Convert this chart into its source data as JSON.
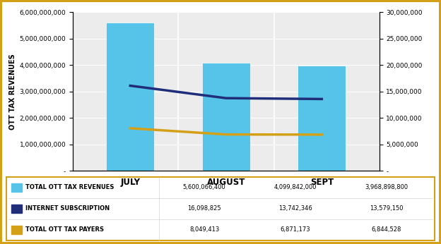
{
  "months": [
    "JULY",
    "AUGUST",
    "SEPT"
  ],
  "bar_values": [
    5600066400,
    4099842000,
    3968898800
  ],
  "internet_subscription": [
    16098825,
    13742346,
    13579150
  ],
  "ott_tax_payers": [
    8049413,
    6871173,
    6844528
  ],
  "bar_color": "#56C4E8",
  "line1_color": "#1F2D7B",
  "line2_color": "#D4A017",
  "ylabel_left": "OTT TAX REVENUES",
  "ylim_left": [
    0,
    6000000000
  ],
  "ylim_right": [
    0,
    30000000
  ],
  "yticks_left": [
    0,
    1000000000,
    2000000000,
    3000000000,
    4000000000,
    5000000000,
    6000000000
  ],
  "yticks_right": [
    0,
    5000000,
    10000000,
    15000000,
    20000000,
    25000000,
    30000000
  ],
  "legend_labels": [
    "TOTAL OTT TAX REVENUES",
    "INTERNET SUBSCRIPTION",
    "TOTAL OTT TAX PAYERS"
  ],
  "table_data": [
    [
      "5,600,066,400",
      "4,099,842,000",
      "3,968,898,800"
    ],
    [
      "16,098,825",
      "13,742,346",
      "13,579,150"
    ],
    [
      "8,049,413",
      "6,871,173",
      "6,844,528"
    ]
  ],
  "background_color": "#ECECEC",
  "border_color": "#D4A017"
}
